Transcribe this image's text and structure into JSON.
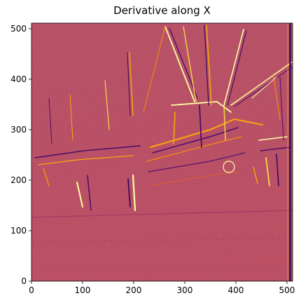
{
  "figure": {
    "title": "Derivative along X"
  },
  "axes": {
    "xlim": [
      0,
      511
    ],
    "ylim": [
      0,
      511
    ],
    "x_ticks": [
      0,
      100,
      200,
      300,
      400,
      500
    ],
    "y_ticks": [
      0,
      100,
      200,
      300,
      400,
      500
    ],
    "y_origin": "lower"
  },
  "image": {
    "description_kind": "x-derivative edge map of a harbor photo with fishing boats and masts",
    "colormap": "inferno",
    "colormap_stops": [
      "#000004",
      "#420a68",
      "#932667",
      "#dd513a",
      "#fca50a",
      "#fcffa4"
    ],
    "background_level_color": "#b7485e"
  }
}
